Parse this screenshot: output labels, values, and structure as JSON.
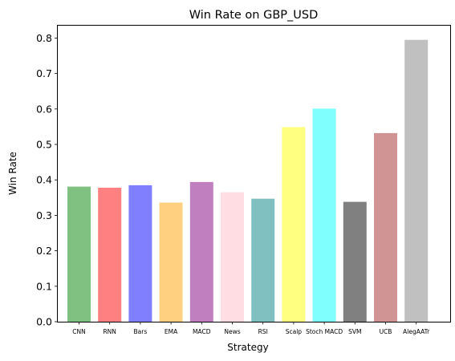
{
  "chart_data": {
    "type": "bar",
    "title": "Win Rate on GBP_USD",
    "xlabel": "Strategy",
    "ylabel": "Win Rate",
    "ylim": [
      0,
      0.835
    ],
    "yticks": [
      0.0,
      0.1,
      0.2,
      0.3,
      0.4,
      0.5,
      0.6,
      0.7,
      0.8
    ],
    "ytick_labels": [
      "0.0",
      "0.1",
      "0.2",
      "0.3",
      "0.4",
      "0.5",
      "0.6",
      "0.7",
      "0.8"
    ],
    "grid": false,
    "categories": [
      "CNN",
      "RNN",
      "Bars",
      "EMA",
      "MACD",
      "News",
      "RSI",
      "Scalp",
      "Stoch MACD",
      "SVM",
      "UCB",
      "AlegAATr"
    ],
    "values": [
      0.381,
      0.378,
      0.385,
      0.336,
      0.394,
      0.365,
      0.347,
      0.549,
      0.601,
      0.338,
      0.532,
      0.795
    ],
    "colors": [
      "#80c080",
      "#ff8080",
      "#8080ff",
      "#ffd080",
      "#c080c0",
      "#ffdde3",
      "#80c0c0",
      "#ffff80",
      "#80ffff",
      "#808080",
      "#d09494",
      "#c0c0c0"
    ]
  }
}
